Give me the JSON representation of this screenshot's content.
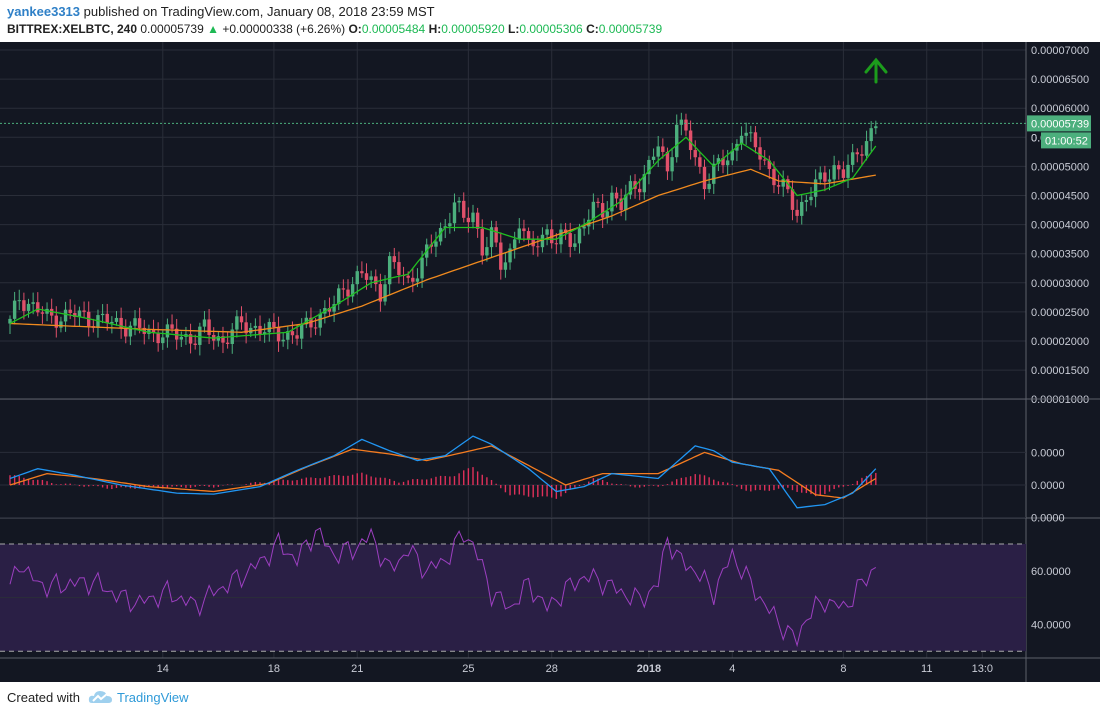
{
  "header": {
    "author": "yankee3313",
    "published_text": "published on TradingView.com, January 08, 2018 23:59 MST",
    "symbol": "BITTREX:XELBTC, 240",
    "last": "0.00005739",
    "change": "+0.00000338 (+6.26%)",
    "o_label": "O:",
    "o_value": "0.00005484",
    "h_label": "H:",
    "h_value": "0.00005920",
    "l_label": "L:",
    "l_value": "0.00005306",
    "c_label": "C:",
    "c_value": "0.00005739"
  },
  "footer": {
    "created_with": "Created with",
    "brand": "TradingView"
  },
  "colors": {
    "bg": "#131722",
    "grid": "#2a2e39",
    "up": "#4caf7d",
    "down": "#e0506a",
    "ma_fast": "#20c020",
    "ma_slow": "#f08a1e",
    "macd": "#2196f3",
    "signal": "#f57c20",
    "hist": "#e0305a",
    "rsi": "#9c3fc0",
    "rsi_band": "#2a1f45",
    "arrow": "#1c9c1c",
    "price_label": "#4caf7d"
  },
  "icons": {
    "arrow": "green-up-arrow-icon",
    "logo": "tradingview-cloud-icon"
  },
  "chart_data": [
    {
      "type": "candlestick",
      "name": "price",
      "y_ticks": [
        "0.00007000",
        "0.00006500",
        "0.00006000",
        "0.00005500",
        "0.00005000",
        "0.00004500",
        "0.00004000",
        "0.00003500",
        "0.00003000",
        "0.00002500",
        "0.00002000",
        "0.00001500",
        "0.00001000"
      ],
      "ylim": [
        9.5e-06,
        7.1e-06
      ],
      "x_ticks": [
        "14",
        "18",
        "21",
        "25",
        "28",
        "2018",
        "4",
        "8",
        "11",
        "13:0"
      ],
      "x_tick_index": [
        33,
        57,
        75,
        99,
        117,
        138,
        156,
        180,
        198,
        210
      ],
      "current_price_label": "0.00005739",
      "countdown_label": "01:00:52",
      "partial_label": "0.",
      "close_anchors": [
        [
          0,
          2.3
        ],
        [
          2,
          2.75
        ],
        [
          4,
          2.65
        ],
        [
          8,
          2.4
        ],
        [
          14,
          2.45
        ],
        [
          20,
          2.35
        ],
        [
          26,
          2.25
        ],
        [
          30,
          2.15
        ],
        [
          36,
          2.1
        ],
        [
          40,
          2.05
        ],
        [
          42,
          2.2
        ],
        [
          46,
          2.0
        ],
        [
          50,
          2.3
        ],
        [
          56,
          2.15
        ],
        [
          62,
          2.1
        ],
        [
          66,
          2.4
        ],
        [
          70,
          2.6
        ],
        [
          72,
          2.9
        ],
        [
          76,
          3.15
        ],
        [
          78,
          3.0
        ],
        [
          80,
          2.85
        ],
        [
          82,
          3.35
        ],
        [
          86,
          3.0
        ],
        [
          90,
          3.5
        ],
        [
          94,
          4.0
        ],
        [
          96,
          4.4
        ],
        [
          98,
          4.05
        ],
        [
          100,
          4.2
        ],
        [
          102,
          3.6
        ],
        [
          104,
          3.8
        ],
        [
          106,
          3.3
        ],
        [
          108,
          3.55
        ],
        [
          110,
          4.05
        ],
        [
          112,
          3.55
        ],
        [
          114,
          3.75
        ],
        [
          116,
          3.9
        ],
        [
          118,
          3.65
        ],
        [
          120,
          3.8
        ],
        [
          122,
          3.75
        ],
        [
          124,
          4.0
        ],
        [
          126,
          4.25
        ],
        [
          128,
          4.25
        ],
        [
          130,
          4.5
        ],
        [
          132,
          4.3
        ],
        [
          134,
          4.6
        ],
        [
          136,
          4.75
        ],
        [
          138,
          5.0
        ],
        [
          140,
          5.35
        ],
        [
          142,
          4.9
        ],
        [
          144,
          5.8
        ],
        [
          146,
          5.55
        ],
        [
          148,
          5.1
        ],
        [
          150,
          4.75
        ],
        [
          152,
          4.95
        ],
        [
          154,
          5.05
        ],
        [
          156,
          5.2
        ],
        [
          158,
          5.7
        ],
        [
          160,
          5.4
        ],
        [
          162,
          5.2
        ],
        [
          164,
          4.95
        ],
        [
          166,
          4.7
        ],
        [
          168,
          4.5
        ],
        [
          170,
          4.2
        ],
        [
          172,
          4.5
        ],
        [
          174,
          4.65
        ],
        [
          176,
          4.8
        ],
        [
          178,
          5.0
        ],
        [
          180,
          4.9
        ],
        [
          182,
          5.05
        ],
        [
          184,
          5.35
        ],
        [
          186,
          5.6
        ],
        [
          187,
          5.74
        ]
      ],
      "close_scale": 1e-05,
      "ma_fast_anchors": [
        [
          0,
          2.3
        ],
        [
          6,
          2.55
        ],
        [
          16,
          2.4
        ],
        [
          30,
          2.15
        ],
        [
          44,
          2.05
        ],
        [
          60,
          2.15
        ],
        [
          70,
          2.6
        ],
        [
          78,
          3.0
        ],
        [
          86,
          3.15
        ],
        [
          94,
          3.95
        ],
        [
          102,
          3.95
        ],
        [
          110,
          3.75
        ],
        [
          118,
          3.75
        ],
        [
          124,
          4.0
        ],
        [
          132,
          4.4
        ],
        [
          140,
          5.1
        ],
        [
          146,
          5.5
        ],
        [
          152,
          5.0
        ],
        [
          158,
          5.4
        ],
        [
          164,
          5.1
        ],
        [
          170,
          4.5
        ],
        [
          176,
          4.6
        ],
        [
          182,
          4.8
        ],
        [
          187,
          5.35
        ]
      ],
      "ma_slow_anchors": [
        [
          0,
          2.3
        ],
        [
          30,
          2.2
        ],
        [
          50,
          2.15
        ],
        [
          64,
          2.3
        ],
        [
          76,
          2.6
        ],
        [
          90,
          3.05
        ],
        [
          110,
          3.6
        ],
        [
          130,
          4.15
        ],
        [
          140,
          4.5
        ],
        [
          150,
          4.75
        ],
        [
          160,
          4.95
        ],
        [
          166,
          4.75
        ],
        [
          176,
          4.7
        ],
        [
          187,
          4.85
        ]
      ]
    },
    {
      "type": "macd",
      "y_ticks": [
        "0.0000",
        "0.0000",
        "0.0000"
      ],
      "macd_anchors": [
        [
          0,
          0.2
        ],
        [
          6,
          0.5
        ],
        [
          14,
          0.3
        ],
        [
          24,
          0.0
        ],
        [
          36,
          -0.25
        ],
        [
          44,
          -0.28
        ],
        [
          54,
          -0.05
        ],
        [
          62,
          0.45
        ],
        [
          70,
          0.9
        ],
        [
          76,
          1.4
        ],
        [
          82,
          1.05
        ],
        [
          88,
          0.75
        ],
        [
          94,
          0.9
        ],
        [
          100,
          1.5
        ],
        [
          104,
          1.25
        ],
        [
          112,
          0.5
        ],
        [
          118,
          -0.2
        ],
        [
          124,
          -0.05
        ],
        [
          130,
          0.35
        ],
        [
          140,
          0.2
        ],
        [
          148,
          1.2
        ],
        [
          152,
          1.05
        ],
        [
          156,
          0.7
        ],
        [
          164,
          0.5
        ],
        [
          170,
          -0.7
        ],
        [
          176,
          -0.6
        ],
        [
          182,
          -0.25
        ],
        [
          187,
          0.5
        ]
      ],
      "signal_anchors": [
        [
          0,
          0.0
        ],
        [
          8,
          0.35
        ],
        [
          18,
          0.2
        ],
        [
          30,
          -0.05
        ],
        [
          44,
          -0.2
        ],
        [
          56,
          0.05
        ],
        [
          64,
          0.55
        ],
        [
          74,
          1.1
        ],
        [
          82,
          0.95
        ],
        [
          90,
          0.75
        ],
        [
          98,
          1.0
        ],
        [
          104,
          1.2
        ],
        [
          112,
          0.6
        ],
        [
          120,
          0.0
        ],
        [
          128,
          0.35
        ],
        [
          140,
          0.35
        ],
        [
          150,
          1.0
        ],
        [
          158,
          0.65
        ],
        [
          166,
          0.45
        ],
        [
          174,
          -0.3
        ],
        [
          180,
          -0.4
        ],
        [
          187,
          0.2
        ]
      ],
      "hist_anchors": [
        [
          0,
          0.3
        ],
        [
          10,
          0.05
        ],
        [
          22,
          -0.1
        ],
        [
          44,
          -0.05
        ],
        [
          64,
          0.2
        ],
        [
          76,
          0.35
        ],
        [
          84,
          0.1
        ],
        [
          96,
          0.3
        ],
        [
          100,
          0.55
        ],
        [
          108,
          -0.3
        ],
        [
          118,
          -0.4
        ],
        [
          126,
          0.2
        ],
        [
          134,
          -0.05
        ],
        [
          140,
          -0.05
        ],
        [
          148,
          0.35
        ],
        [
          154,
          0.1
        ],
        [
          160,
          -0.2
        ],
        [
          168,
          -0.1
        ],
        [
          174,
          -0.35
        ],
        [
          182,
          0.05
        ],
        [
          187,
          0.4
        ]
      ]
    },
    {
      "type": "rsi",
      "y_ticks": [
        "60.0000",
        "40.0000"
      ],
      "band": [
        30,
        70
      ],
      "ylim": [
        25,
        75
      ],
      "rsi_anchors": [
        [
          0,
          53
        ],
        [
          2,
          64
        ],
        [
          4,
          58
        ],
        [
          8,
          54
        ],
        [
          12,
          55
        ],
        [
          18,
          56
        ],
        [
          24,
          50
        ],
        [
          28,
          48
        ],
        [
          34,
          52
        ],
        [
          40,
          47
        ],
        [
          44,
          52
        ],
        [
          50,
          58
        ],
        [
          54,
          63
        ],
        [
          58,
          70
        ],
        [
          62,
          64
        ],
        [
          66,
          75
        ],
        [
          70,
          66
        ],
        [
          74,
          68
        ],
        [
          78,
          73
        ],
        [
          82,
          60
        ],
        [
          86,
          68
        ],
        [
          90,
          60
        ],
        [
          94,
          64
        ],
        [
          98,
          74
        ],
        [
          100,
          70
        ],
        [
          104,
          52
        ],
        [
          108,
          46
        ],
        [
          112,
          55
        ],
        [
          116,
          46
        ],
        [
          120,
          53
        ],
        [
          124,
          58
        ],
        [
          128,
          56
        ],
        [
          132,
          52
        ],
        [
          136,
          49
        ],
        [
          140,
          55
        ],
        [
          142,
          73
        ],
        [
          144,
          65
        ],
        [
          148,
          60
        ],
        [
          152,
          52
        ],
        [
          156,
          66
        ],
        [
          160,
          55
        ],
        [
          164,
          45
        ],
        [
          168,
          37
        ],
        [
          170,
          34
        ],
        [
          172,
          43
        ],
        [
          176,
          49
        ],
        [
          180,
          46
        ],
        [
          184,
          55
        ],
        [
          187,
          62
        ]
      ]
    }
  ]
}
